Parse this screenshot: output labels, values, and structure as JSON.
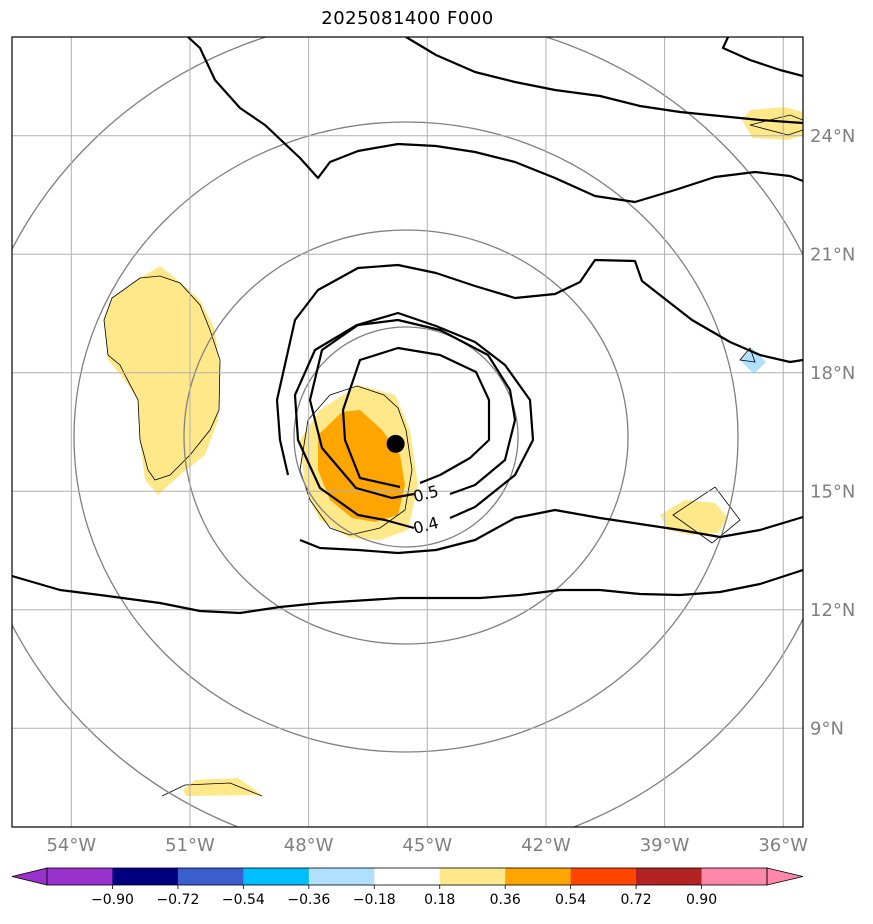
{
  "title": "2025081400 F000",
  "map": {
    "lon_range": [
      -55.5,
      -35.5
    ],
    "lat_range": [
      6.5,
      26.5
    ],
    "lon_ticks": [
      {
        "value": -54,
        "label": "54°W"
      },
      {
        "value": -51,
        "label": "51°W"
      },
      {
        "value": -48,
        "label": "48°W"
      },
      {
        "value": -45,
        "label": "45°W"
      },
      {
        "value": -42,
        "label": "42°W"
      },
      {
        "value": -39,
        "label": "39°W"
      },
      {
        "value": -36,
        "label": "36°W"
      }
    ],
    "lat_ticks": [
      {
        "value": 24,
        "label": "24°N"
      },
      {
        "value": 21,
        "label": "21°N"
      },
      {
        "value": 18,
        "label": "18°N"
      },
      {
        "value": 15,
        "label": "15°N"
      },
      {
        "value": 12,
        "label": "12°N"
      },
      {
        "value": 9,
        "label": "9°N"
      }
    ],
    "storm_center": {
      "lon": -45.8,
      "lat": 16.2
    },
    "contour_labels": [
      {
        "text": "0.5",
        "lon": -45.0,
        "lat": 14.8
      },
      {
        "text": "0.4",
        "lon": -45.0,
        "lat": 14.0
      }
    ]
  },
  "colorbar": {
    "labels": [
      "−0.90",
      "−0.72",
      "−0.54",
      "−0.36",
      "−0.18",
      "0.18",
      "0.36",
      "0.54",
      "0.72",
      "0.90"
    ],
    "colors": [
      "#9932CC",
      "#000080",
      "#3A5FCD",
      "#00BFFF",
      "#B0E0FF",
      "#FFFFFF",
      "#FFE88A",
      "#FFA500",
      "#FF4500",
      "#B22222",
      "#FF88AA",
      "#FF88AA"
    ]
  }
}
